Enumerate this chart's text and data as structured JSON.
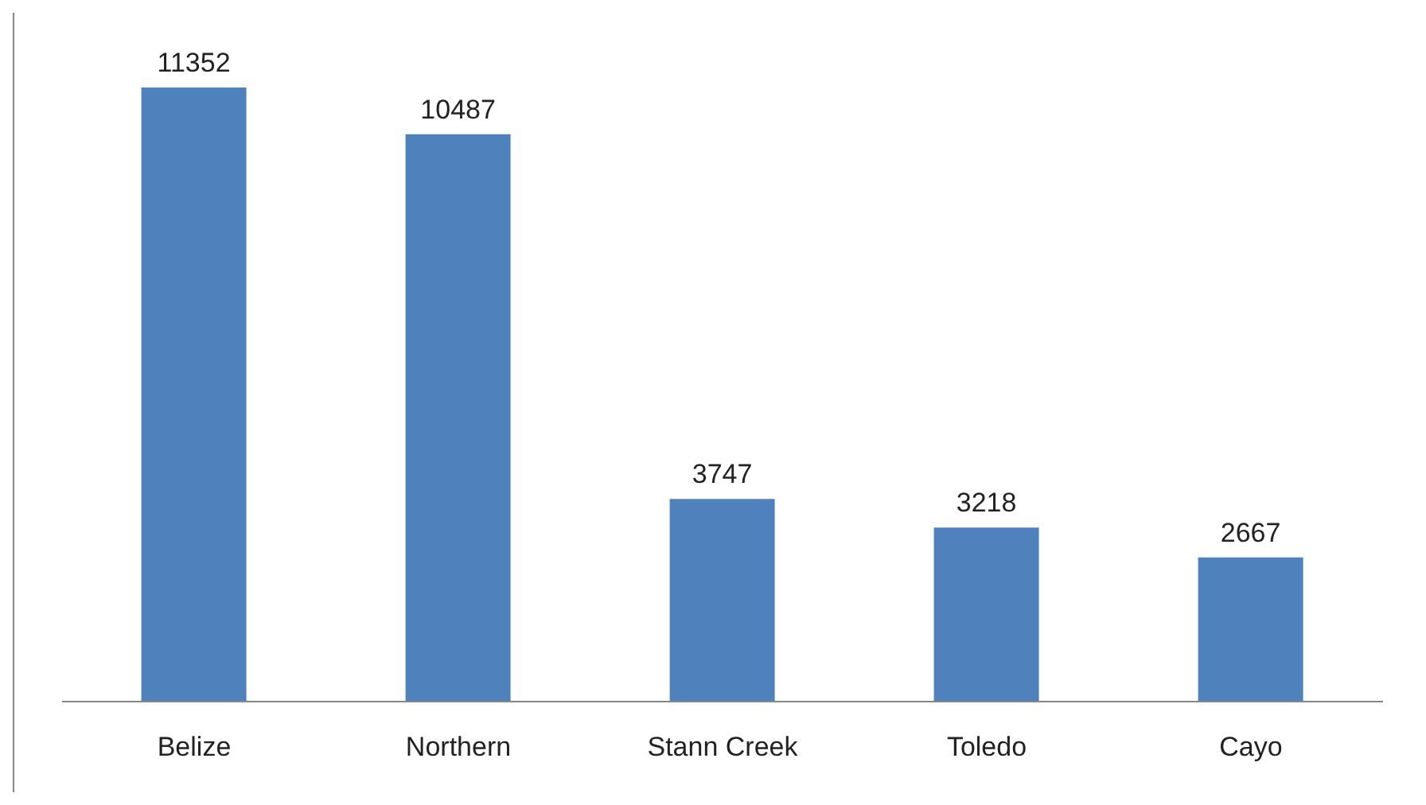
{
  "chart_data": {
    "type": "bar",
    "categories": [
      "Belize",
      "Northern",
      "Stann Creek",
      "Toledo",
      "Cayo"
    ],
    "values": [
      11352,
      10487,
      3747,
      3218,
      2667
    ],
    "color": "#4f81bd",
    "data_labels": true,
    "grid": false
  }
}
